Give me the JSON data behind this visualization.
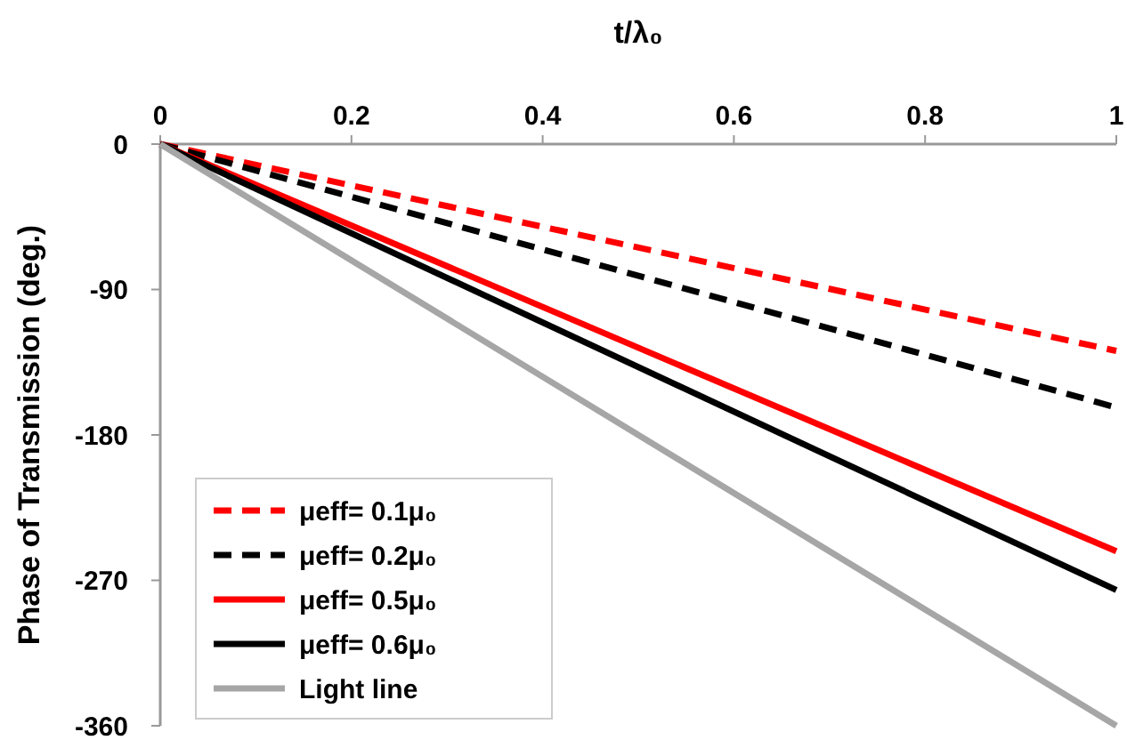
{
  "chart_data": {
    "type": "line",
    "xlabel": "t/λ₀",
    "ylabel": "Phase of Transmission (deg.)",
    "xlim": [
      0,
      1
    ],
    "xticks": [
      0,
      0.2,
      0.4,
      0.6,
      0.8,
      1
    ],
    "ylim": [
      -360,
      0
    ],
    "yticks": [
      0,
      -90,
      -180,
      -270,
      -360
    ],
    "x": [
      0,
      1
    ],
    "legend": "bottom left",
    "grid": false,
    "marker": "none",
    "series": [
      {
        "name": "μeff= 0.1μ₀",
        "color": "#ff0000",
        "line_style": "dashed",
        "values": [
          0,
          -128
        ]
      },
      {
        "name": "μeff= 0.2μ₀",
        "color": "#000000",
        "line_style": "dashed",
        "values": [
          0,
          -163
        ]
      },
      {
        "name": "μeff= 0.5μ₀",
        "color": "#ff0000",
        "line_style": "solid",
        "values": [
          0,
          -252
        ]
      },
      {
        "name": "μeff= 0.6μ₀",
        "color": "#000000",
        "line_style": "solid",
        "values": [
          0,
          -276
        ]
      },
      {
        "name": "Light line",
        "color": "#a6a6a6",
        "line_style": "solid",
        "values": [
          0,
          -360
        ]
      }
    ]
  }
}
